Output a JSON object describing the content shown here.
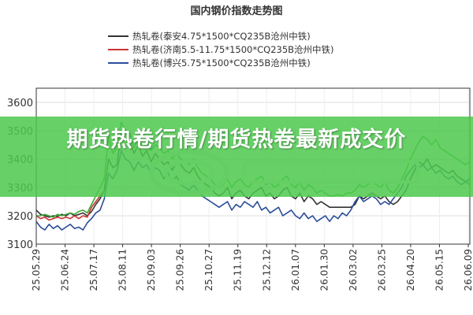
{
  "overlay": {
    "headline": "期货热卷行情/期货热卷最新成交价"
  },
  "chart_data": {
    "type": "line",
    "title": "国内钢价指数走势图",
    "xlabel": "",
    "ylabel": "",
    "ylim": [
      3100,
      3650
    ],
    "yticks": [
      3100,
      3200,
      3300,
      3400,
      3500,
      3600
    ],
    "xticks": [
      "25.05.29",
      "25.06.24",
      "25.07.17",
      "25.08.11",
      "25.09.03",
      "25.09.26",
      "25.10.27",
      "25.11.19",
      "25.12.12",
      "26.01.07",
      "26.01.30",
      "26.03.02",
      "26.03.25",
      "26.04.20",
      "26.05.15",
      "26.06.09"
    ],
    "legend_position": "top",
    "grid": true,
    "series": [
      {
        "name": "热轧卷(泰安4.75*1500*CQ235B沧州中铁)",
        "color": "#333333",
        "values": [
          3220,
          3205,
          3200,
          3195,
          3200,
          3198,
          3205,
          3200,
          3210,
          3200,
          3205,
          3210,
          3200,
          3215,
          3240,
          3260,
          3290,
          3400,
          3370,
          3380,
          3500,
          3470,
          3460,
          3420,
          3450,
          3410,
          3430,
          3390,
          3420,
          3400,
          3380,
          3390,
          3360,
          3390,
          3380,
          3360,
          3350,
          3370,
          3340,
          3320,
          3310,
          3300,
          3280,
          3270,
          3280,
          3300,
          3260,
          3280,
          3290,
          3270,
          3260,
          3280,
          3290,
          3300,
          3270,
          3280,
          3260,
          3270,
          3290,
          3300,
          3270,
          3260,
          3280,
          3250,
          3270,
          3260,
          3240,
          3250,
          3240,
          3230,
          3230,
          3230,
          3230,
          3230,
          3230,
          3240,
          3270,
          3260,
          3270,
          3280,
          3270,
          3260,
          3270,
          3250,
          3240,
          3250,
          3270,
          3290,
          3330,
          3360,
          3390,
          3380,
          3400,
          3370,
          3380,
          3370,
          3360,
          3350,
          3360,
          3340,
          3330,
          3320,
          3330
        ]
      },
      {
        "name": "热轧卷(济南5.5-11.75*1500*CQ235B沧州中铁)",
        "color": "#cc3333",
        "values": [
          3200,
          3190,
          3195,
          3185,
          3190,
          3195,
          3190,
          3195,
          3190,
          3200,
          3190,
          3200,
          3195,
          3230,
          3250,
          3270,
          3290
        ]
      },
      {
        "name": "热轧卷(博兴5.75*1500*CQ235B沧州中铁)",
        "color": "#2a4d9a",
        "values": [
          3180,
          3160,
          3150,
          3170,
          3155,
          3165,
          3150,
          3160,
          3170,
          3155,
          3160,
          3150,
          3175,
          3190,
          3210,
          3220,
          3260,
          3350,
          3330,
          3360,
          3430,
          3400,
          3390,
          3360,
          3390,
          3370,
          3380,
          3350,
          3370,
          3360,
          3330,
          3350,
          3320,
          3340,
          3310,
          3300,
          3290,
          3310,
          3290,
          3270,
          3260,
          3250,
          3240,
          3230,
          3240,
          3250,
          3220,
          3240,
          3230,
          3250,
          3240,
          3230,
          3250,
          3220,
          3230,
          3210,
          3220,
          3230,
          3200,
          3210,
          3220,
          3200,
          3190,
          3210,
          3190,
          3200,
          3180,
          3190,
          3200,
          3180,
          3200,
          3190,
          3210,
          3200,
          3220,
          3250,
          3270,
          3250,
          3260,
          3270,
          3260,
          3240,
          3250,
          3240,
          3260,
          3280,
          3300,
          3340,
          3360,
          3380,
          3370,
          3380,
          3360,
          3370,
          3350,
          3360,
          3340,
          3330,
          3340,
          3320,
          3310,
          3320,
          3310
        ]
      },
      {
        "name": "",
        "color": "#3aaa35",
        "values": [
          3200,
          3200,
          3205,
          3200,
          3195,
          3205,
          3200,
          3205,
          3210,
          3205,
          3215,
          3220,
          3210,
          3240,
          3270,
          3300,
          3330,
          3480,
          3420,
          3440,
          3530,
          3500,
          3490,
          3440,
          3470,
          3440,
          3460,
          3430,
          3450,
          3440,
          3420,
          3430,
          3400,
          3420,
          3400,
          3390,
          3380,
          3400,
          3370,
          3350,
          3340,
          3330,
          3310,
          3300,
          3310,
          3330,
          3300,
          3320,
          3330,
          3310,
          3300,
          3320,
          3330,
          3340,
          3310,
          3320,
          3300,
          3310,
          3330,
          3340,
          3310,
          3300,
          3320,
          3290,
          3310,
          3300,
          3280,
          3290,
          3280,
          3270,
          3270,
          3275,
          3270,
          3280,
          3280,
          3290,
          3310,
          3300,
          3310,
          3320,
          3310,
          3300,
          3320,
          3290,
          3280,
          3300,
          3330,
          3360,
          3400,
          3430,
          3460,
          3480,
          3470,
          3450,
          3470,
          3440,
          3430,
          3420,
          3410,
          3400,
          3390,
          3380,
          3390
        ]
      }
    ]
  }
}
